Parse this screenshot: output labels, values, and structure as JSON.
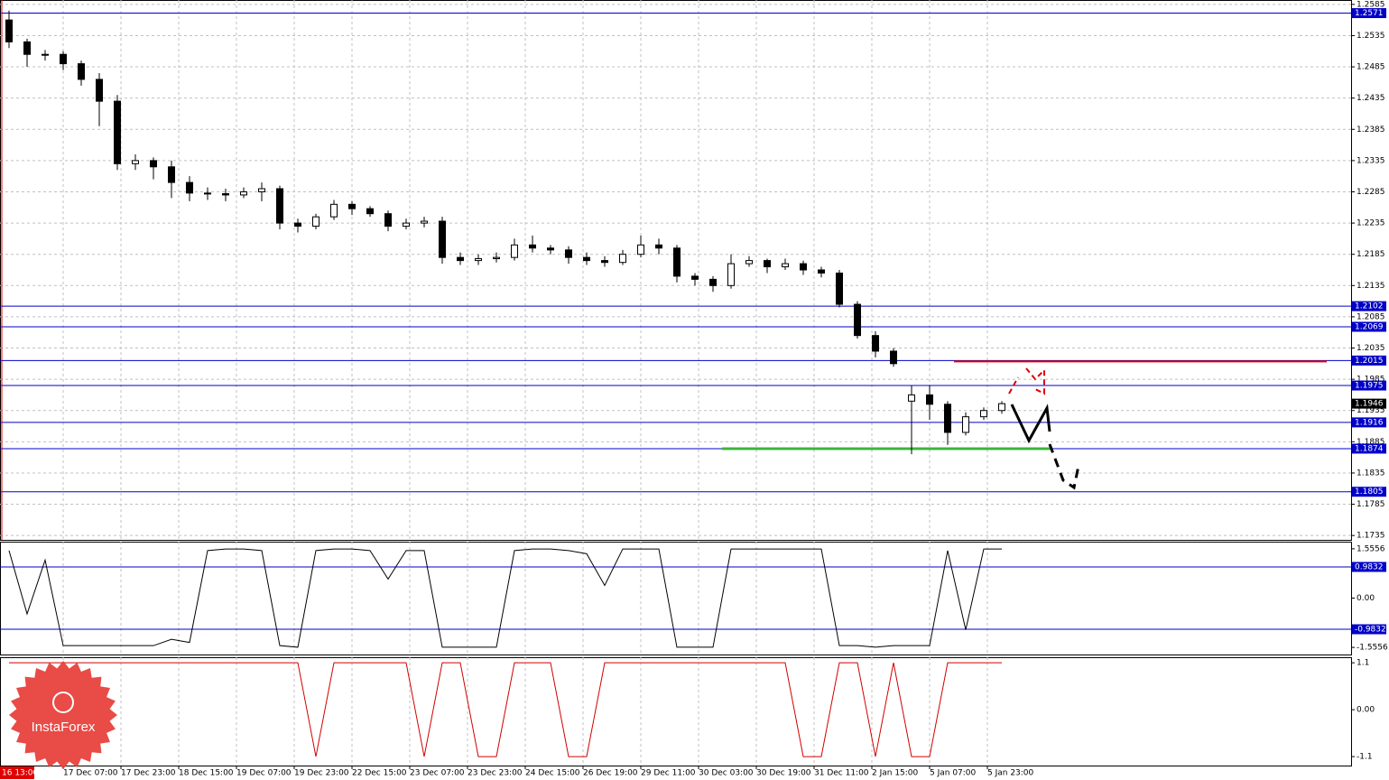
{
  "chart_data": [
    {
      "type": "candlestick",
      "ylim": [
        1.1728,
        1.2592
      ],
      "yticks": [
        1.2585,
        1.2535,
        1.2485,
        1.2435,
        1.2385,
        1.2335,
        1.2285,
        1.2235,
        1.2185,
        1.2135,
        1.2085,
        1.2035,
        1.1985,
        1.1935,
        1.1885,
        1.1835,
        1.1785,
        1.1735
      ],
      "grid": true,
      "open": [
        1.256,
        1.2525,
        1.2505,
        1.2505,
        1.249,
        1.2465,
        1.243,
        1.233,
        1.2335,
        1.2325,
        1.23,
        1.2283,
        1.2282,
        1.228,
        1.2285,
        1.229,
        1.2235,
        1.223,
        1.2245,
        1.2265,
        1.2258,
        1.225,
        1.223,
        1.2235,
        1.2238,
        1.218,
        1.2175,
        1.2178,
        1.218,
        1.22,
        1.2195,
        1.2192,
        1.218,
        1.2175,
        1.2172,
        1.2185,
        1.22,
        1.2195,
        1.215,
        1.2145,
        1.2135,
        1.217,
        1.2175,
        1.2165,
        1.217,
        1.216,
        1.2155,
        1.2105,
        1.2055,
        1.203,
        1.195,
        1.196,
        1.1945,
        1.19,
        1.1925,
        1.1935
      ],
      "high": [
        1.2575,
        1.253,
        1.2512,
        1.251,
        1.2495,
        1.2475,
        1.244,
        1.2345,
        1.234,
        1.2335,
        1.231,
        1.2292,
        1.229,
        1.2292,
        1.23,
        1.2295,
        1.2242,
        1.225,
        1.2272,
        1.227,
        1.2262,
        1.2255,
        1.2242,
        1.2245,
        1.2245,
        1.2188,
        1.2185,
        1.2188,
        1.221,
        1.2215,
        1.22,
        1.2198,
        1.2188,
        1.2182,
        1.2192,
        1.2215,
        1.221,
        1.22,
        1.2155,
        1.215,
        1.2185,
        1.2182,
        1.2178,
        1.2178,
        1.2175,
        1.2165,
        1.216,
        1.211,
        1.2062,
        1.2035,
        1.1975,
        1.1975,
        1.195,
        1.1932,
        1.194,
        1.195
      ],
      "low": [
        1.2515,
        1.2485,
        1.2495,
        1.248,
        1.2455,
        1.239,
        1.232,
        1.232,
        1.2305,
        1.2275,
        1.227,
        1.2272,
        1.227,
        1.2275,
        1.227,
        1.2225,
        1.222,
        1.2225,
        1.224,
        1.2248,
        1.2245,
        1.2222,
        1.2225,
        1.2228,
        1.217,
        1.2168,
        1.2168,
        1.2172,
        1.2175,
        1.2188,
        1.2185,
        1.217,
        1.2168,
        1.2165,
        1.2168,
        1.218,
        1.2185,
        1.214,
        1.2135,
        1.2125,
        1.213,
        1.2165,
        1.2155,
        1.216,
        1.2152,
        1.2148,
        1.21,
        1.205,
        1.202,
        1.2005,
        1.1865,
        1.192,
        1.188,
        1.1895,
        1.192,
        1.193
      ],
      "close": [
        1.2525,
        1.2505,
        1.2505,
        1.249,
        1.2465,
        1.243,
        1.233,
        1.2335,
        1.2325,
        1.23,
        1.2283,
        1.2282,
        1.228,
        1.2285,
        1.229,
        1.2235,
        1.223,
        1.2245,
        1.2265,
        1.2258,
        1.225,
        1.223,
        1.2235,
        1.2238,
        1.218,
        1.2175,
        1.2178,
        1.218,
        1.22,
        1.2195,
        1.2192,
        1.218,
        1.2175,
        1.2172,
        1.2185,
        1.22,
        1.2195,
        1.215,
        1.2145,
        1.2135,
        1.217,
        1.2175,
        1.2165,
        1.217,
        1.216,
        1.2155,
        1.2105,
        1.2055,
        1.203,
        1.201,
        1.196,
        1.1945,
        1.19,
        1.1925,
        1.1935,
        1.1946
      ],
      "levels": [
        1.2571,
        1.2102,
        1.2069,
        1.2015,
        1.1975,
        1.1916,
        1.1874,
        1.1805
      ],
      "level_color": "#0000c8",
      "last_price": 1.1946,
      "resistance": 1.2015,
      "resistance_color": "#e00000",
      "support": 1.1874,
      "support_color": "#3cb43c",
      "time_start_label": "16 13:00",
      "time_labels": [
        "17 Dec 07:00",
        "17 Dec 23:00",
        "18 Dec 15:00",
        "19 Dec 07:00",
        "19 Dec 23:00",
        "22 Dec 15:00",
        "23 Dec 07:00",
        "23 Dec 23:00",
        "24 Dec 15:00",
        "26 Dec 19:00",
        "29 Dec 11:00",
        "30 Dec 03:00",
        "30 Dec 19:00",
        "31 Dec 11:00",
        "2 Jan 15:00",
        "5 Jan 07:00",
        "5 Jan 23:00"
      ],
      "logo": "InstaForex"
    },
    {
      "type": "line",
      "ylim": [
        -1.78,
        1.78
      ],
      "yticks": [
        1.5556,
        {
          "value": 0,
          "label": "0.00"
        },
        -1.5556
      ],
      "levels": [
        0.9832,
        -0.9832
      ],
      "level_color": "#0000c8",
      "color": "#000000",
      "values": [
        1.5,
        -0.5,
        1.2,
        -1.5,
        -1.5,
        -1.5,
        -1.5,
        -1.5,
        -1.5,
        -1.3,
        -1.4,
        1.5,
        1.55,
        1.55,
        1.5,
        -1.5,
        -1.55,
        1.5,
        1.55,
        1.55,
        1.5,
        0.6,
        1.5,
        1.5,
        -1.55,
        -1.55,
        -1.55,
        -1.55,
        1.5,
        1.55,
        1.55,
        1.5,
        1.4,
        0.4,
        1.55,
        1.55,
        1.55,
        -1.55,
        -1.55,
        -1.55,
        1.55,
        1.55,
        1.55,
        1.55,
        1.55,
        1.55,
        -1.5,
        -1.5,
        -1.55,
        -1.5,
        -1.5,
        -1.5,
        1.5,
        -1.0,
        1.55,
        1.55
      ]
    },
    {
      "type": "line",
      "ylim": [
        -1.31,
        1.23
      ],
      "yticks": [
        1.1,
        {
          "value": 0,
          "label": "0.00"
        },
        -1.1
      ],
      "color": "#d00000",
      "values": [
        1.1,
        1.1,
        1.1,
        1.1,
        1.1,
        1.1,
        1.1,
        1.1,
        1.1,
        1.1,
        1.1,
        1.1,
        1.1,
        1.1,
        1.1,
        1.1,
        1.1,
        -1.1,
        1.1,
        1.1,
        1.1,
        1.1,
        1.1,
        -1.1,
        1.1,
        1.1,
        -1.1,
        -1.1,
        1.1,
        1.1,
        1.1,
        -1.1,
        -1.1,
        1.1,
        1.1,
        1.1,
        1.1,
        1.1,
        1.1,
        1.1,
        1.1,
        1.1,
        1.1,
        1.1,
        -1.1,
        -1.1,
        1.1,
        1.1,
        -1.1,
        1.1,
        -1.1,
        -1.1,
        1.1,
        1.1,
        1.1,
        1.1
      ]
    }
  ]
}
